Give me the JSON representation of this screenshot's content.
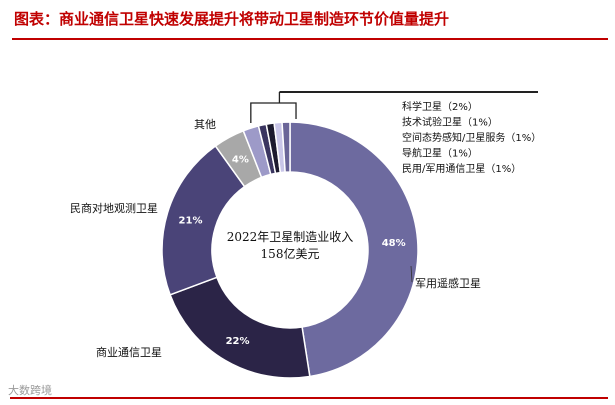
{
  "header": {
    "title": "图表：商业通信卫星快速发展提升将带动卫星制造环节价值量提升"
  },
  "watermark": "大数跨境",
  "chart_data": {
    "type": "pie",
    "center_text": [
      "2022年卫星制造业收入",
      "158亿美元"
    ],
    "slices": [
      {
        "name": "军用遥感卫星",
        "value": 48,
        "value_label": "48%",
        "color": "#6d6a9f"
      },
      {
        "name": "商业通信卫星",
        "value": 22,
        "value_label": "22%",
        "color": "#2b2447"
      },
      {
        "name": "民商对地观测卫星",
        "value": 21,
        "value_label": "21%",
        "color": "#4a4478"
      },
      {
        "name": "其他",
        "value": 4,
        "value_label": "4%",
        "color": "#a8a8a8"
      },
      {
        "name": "科学卫星（2%）",
        "value": 2,
        "value_label": "",
        "color": "#9d9ac8"
      },
      {
        "name": "技术试验卫星（1%）",
        "value": 1,
        "value_label": "",
        "color": "#3a3560"
      },
      {
        "name": "空间态势感知/卫星服务（1%）",
        "value": 1,
        "value_label": "",
        "color": "#1c1a2e"
      },
      {
        "name": "导航卫星（1%）",
        "value": 1,
        "value_label": "",
        "color": "#c9c6e8"
      },
      {
        "name": "民用/军用通信卫星（1%）",
        "value": 1,
        "value_label": "",
        "color": "#6a6598"
      }
    ]
  }
}
